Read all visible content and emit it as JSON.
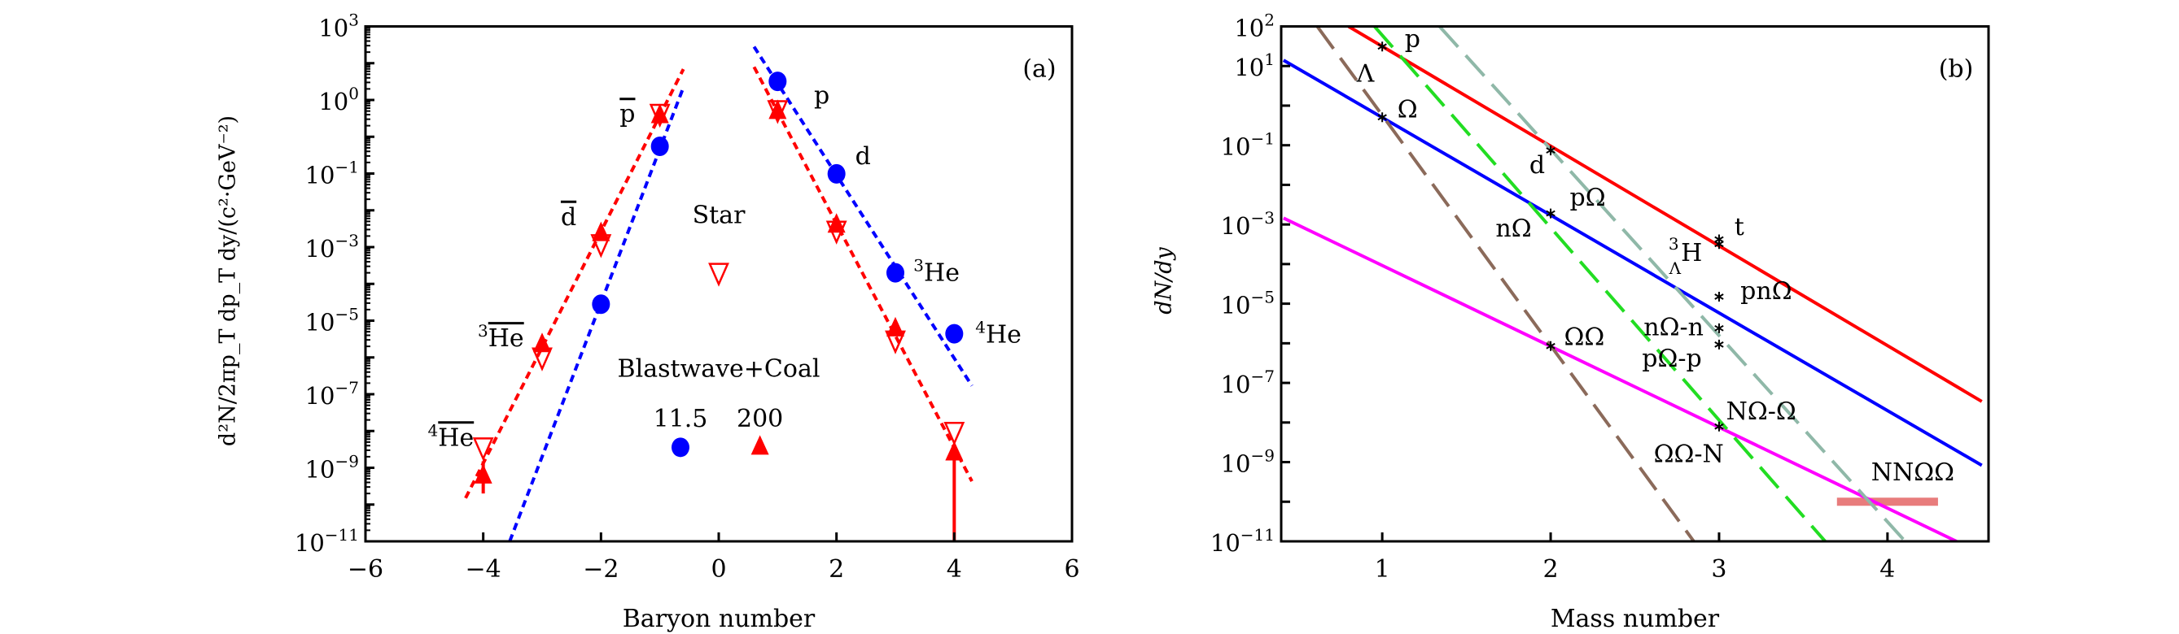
{
  "chart_data": [
    {
      "type": "scatter",
      "panel_label": "(a)",
      "xlabel": "Baryon number",
      "ylabel": "d²N/2πp_T dp_T dy/(c²·GeV⁻²)",
      "xlim": [
        -6,
        6
      ],
      "ylim": [
        1e-11,
        1000.0
      ],
      "yscale": "log",
      "grid": false,
      "xticks": [
        -6,
        -4,
        -2,
        0,
        2,
        4,
        6
      ],
      "xtick_labels": [
        "−6",
        "−4",
        "−2",
        "0",
        "2",
        "4",
        "6"
      ],
      "yticks": [
        1000.0,
        10.0,
        0.1,
        0.001,
        1e-05,
        1e-07,
        1e-09,
        1e-11
      ],
      "ytick_labels": [
        {
          "base": "10",
          "exp": "3"
        },
        {
          "base": "10",
          "exp": "0"
        },
        {
          "base": "10",
          "exp": "−1"
        },
        {
          "base": "10",
          "exp": "−3"
        },
        {
          "base": "10",
          "exp": "−5"
        },
        {
          "base": "10",
          "exp": "−7"
        },
        {
          "base": "10",
          "exp": "−9"
        },
        {
          "base": "10",
          "exp": "−11"
        }
      ],
      "series": [
        {
          "name": "11.5",
          "marker": "circle",
          "color": "#0000ff",
          "points": [
            [
              -2,
              2.8e-05
            ],
            [
              -1,
              0.55
            ],
            [
              1,
              32
            ],
            [
              2,
              0.098
            ],
            [
              3,
              0.0002
            ],
            [
              4,
              4.4e-06
            ]
          ]
        },
        {
          "name": "200",
          "marker": "triangle-up",
          "color": "#ff0000",
          "points": [
            [
              -4,
              5.9e-10
            ],
            [
              -3,
              2.2e-06
            ],
            [
              -2,
              0.0023
            ],
            [
              -1,
              3.7
            ],
            [
              1,
              4.8
            ],
            [
              2,
              0.0039
            ],
            [
              3,
              5.9e-06
            ],
            [
              4,
              2.5e-09
            ]
          ],
          "error_bars": [
            {
              "x": -4,
              "low": 2e-10,
              "high": 1.5e-09
            },
            {
              "x": 4,
              "low": 1e-11,
              "high": 2.5e-09
            }
          ]
        },
        {
          "name": "Star",
          "marker": "triangle-down-open",
          "color": "#ff0000",
          "points": [
            [
              -4,
              3.6e-09
            ],
            [
              -3,
              1e-06
            ],
            [
              -2,
              0.0012
            ],
            [
              -1,
              4.2
            ],
            [
              0,
              0.0002
            ],
            [
              1,
              5.3
            ],
            [
              2,
              0.0028
            ],
            [
              3,
              2.9e-06
            ],
            [
              4,
              9.5e-09
            ]
          ]
        }
      ],
      "fit_lines": [
        {
          "color": "#ff0000",
          "style": "dotted",
          "points": [
            [
              -4.3,
              1.5e-10
            ],
            [
              -0.6,
              69
            ]
          ]
        },
        {
          "color": "#0000ff",
          "style": "dotted",
          "points": [
            [
              -3.55,
              1e-11
            ],
            [
              -0.6,
              22
            ]
          ]
        },
        {
          "color": "#ff0000",
          "style": "dotted",
          "points": [
            [
              0.6,
              79
            ],
            [
              4.3,
              4.3e-10
            ]
          ]
        },
        {
          "color": "#0000ff",
          "style": "dotted",
          "points": [
            [
              0.6,
              280
            ],
            [
              4.3,
              1.7e-07
            ]
          ]
        }
      ],
      "legend": {
        "title": "Blastwave+Coal",
        "entries": [
          "11.5",
          "200"
        ],
        "placement": "center-bottom"
      },
      "annotations": [
        {
          "pre": "",
          "text": "p",
          "bar": true
        },
        {
          "pre": "",
          "text": "d",
          "bar": true
        },
        {
          "pre": "3",
          "text": "He",
          "bar": true
        },
        {
          "pre": "4",
          "text": "He",
          "bar": true
        },
        {
          "pre": "",
          "text": "p",
          "bar": false
        },
        {
          "pre": "",
          "text": "d",
          "bar": false
        },
        {
          "pre": "3",
          "text": "He",
          "bar": false
        },
        {
          "pre": "4",
          "text": "He",
          "bar": false
        },
        {
          "pre": "",
          "text": "Star",
          "bar": false
        }
      ]
    },
    {
      "type": "line",
      "panel_label": "(b)",
      "xlabel": "Mass number",
      "ylabel": "dN/dy",
      "xlim": [
        0.4,
        4.6
      ],
      "ylim": [
        1e-11,
        100.0
      ],
      "yscale": "log",
      "grid": false,
      "xticks": [
        1,
        2,
        3,
        4
      ],
      "xtick_labels": [
        "1",
        "2",
        "3",
        "4"
      ],
      "yticks": [
        100.0,
        10.0,
        0.1,
        0.001,
        1e-05,
        1e-07,
        1e-09,
        1e-11
      ],
      "ytick_labels": [
        {
          "base": "10",
          "exp": "2"
        },
        {
          "base": "10",
          "exp": "1"
        },
        {
          "base": "10",
          "exp": "−1"
        },
        {
          "base": "10",
          "exp": "−3"
        },
        {
          "base": "10",
          "exp": "−5"
        },
        {
          "base": "10",
          "exp": "−7"
        },
        {
          "base": "10",
          "exp": "−9"
        },
        {
          "base": "10",
          "exp": "−11"
        }
      ],
      "lines": [
        {
          "color": "#ff0000",
          "style": "solid",
          "points": [
            [
              0.8,
              100
            ],
            [
              4.56,
              3.4e-08
            ]
          ]
        },
        {
          "color": "#0000ff",
          "style": "solid",
          "points": [
            [
              0.414,
              14
            ],
            [
              4.56,
              8.3e-10
            ]
          ]
        },
        {
          "color": "#ff00ff",
          "style": "solid",
          "points": [
            [
              0.414,
              0.00145
            ],
            [
              4.41,
              1e-11
            ]
          ]
        },
        {
          "color": "#8b6a5a",
          "style": "dashed",
          "points": [
            [
              0.614,
              100
            ],
            [
              2.85,
              1e-11
            ]
          ]
        },
        {
          "color": "#22dd22",
          "style": "dashed",
          "points": [
            [
              0.954,
              100
            ],
            [
              3.63,
              1e-11
            ]
          ]
        },
        {
          "color": "#8fb8a8",
          "style": "dashed",
          "points": [
            [
              1.34,
              100
            ],
            [
              4.105,
              1e-11
            ]
          ]
        }
      ],
      "band": {
        "label": "NNΩΩ",
        "color": "#e05050",
        "x": [
          3.7,
          4.3
        ],
        "y": 1e-10
      },
      "points": [
        [
          1,
          31
        ],
        [
          1,
          0.51
        ],
        [
          2,
          0.074
        ],
        [
          2,
          0.0019
        ],
        [
          2,
          8.5e-07
        ],
        [
          3,
          0.00042
        ],
        [
          3,
          0.00032
        ],
        [
          3,
          1.5e-05
        ],
        [
          3,
          2.4e-06
        ],
        [
          3,
          9.3e-07
        ],
        [
          3,
          7.9e-09
        ]
      ],
      "point_marker": "asterisk",
      "annotations": [
        {
          "pre": "",
          "sub": "",
          "text": "Λ"
        },
        {
          "pre": "",
          "sub": "",
          "text": "p"
        },
        {
          "pre": "",
          "sub": "",
          "text": "Ω"
        },
        {
          "pre": "",
          "sub": "",
          "text": "d"
        },
        {
          "pre": "",
          "sub": "",
          "text": "pΩ"
        },
        {
          "pre": "",
          "sub": "",
          "text": "nΩ"
        },
        {
          "pre": "3",
          "sub": "Λ",
          "text": "H"
        },
        {
          "pre": "",
          "sub": "",
          "text": "t"
        },
        {
          "pre": "",
          "sub": "",
          "text": "pnΩ"
        },
        {
          "pre": "",
          "sub": "",
          "text": "nΩ-n"
        },
        {
          "pre": "",
          "sub": "",
          "text": "pΩ-p"
        },
        {
          "pre": "",
          "sub": "",
          "text": "ΩΩ"
        },
        {
          "pre": "",
          "sub": "",
          "text": "NΩ-Ω"
        },
        {
          "pre": "",
          "sub": "",
          "text": "ΩΩ-N"
        }
      ]
    }
  ]
}
